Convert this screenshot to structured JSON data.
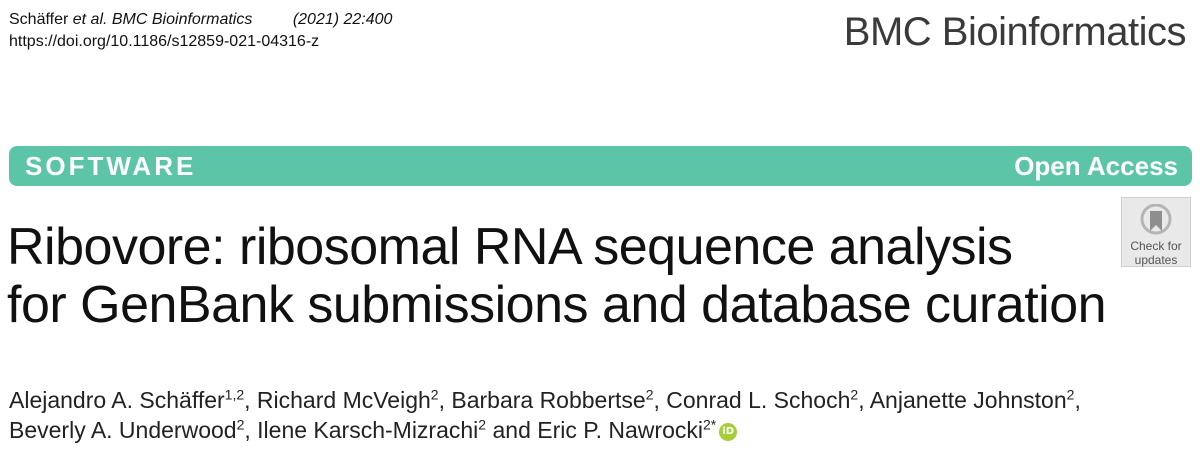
{
  "citation": {
    "authors_short": "Schäffer",
    "et_al_journal": "et al. BMC Bioinformatics",
    "year_volume": "(2021) 22:400",
    "doi": "https://doi.org/10.1186/s12859-021-04316-z"
  },
  "journal": {
    "name": "BMC Bioinformatics"
  },
  "banner": {
    "type": "SOFTWARE",
    "access": "Open Access",
    "color": "#5cc5a7"
  },
  "check_updates": {
    "line1": "Check for",
    "line2": "updates"
  },
  "title": {
    "line1": "Ribovore: ribosomal RNA sequence analysis",
    "line2": "for GenBank submissions and database curation"
  },
  "authors": [
    {
      "name": "Alejandro A. Schäffer",
      "aff": "1,2",
      "sep": ", "
    },
    {
      "name": "Richard McVeigh",
      "aff": "2",
      "sep": ", "
    },
    {
      "name": "Barbara Robbertse",
      "aff": "2",
      "sep": ", "
    },
    {
      "name": "Conrad L. Schoch",
      "aff": "2",
      "sep": ", "
    },
    {
      "name": "Anjanette Johnston",
      "aff": "2",
      "sep": ", "
    },
    {
      "name": "Beverly A. Underwood",
      "aff": "2",
      "sep": ", "
    },
    {
      "name": "Ilene Karsch-Mizrachi",
      "aff": "2",
      "sep": " and "
    },
    {
      "name": "Eric P. Nawrocki",
      "aff": "2*",
      "sep": ""
    }
  ],
  "orcid_icon": "orcid-icon"
}
